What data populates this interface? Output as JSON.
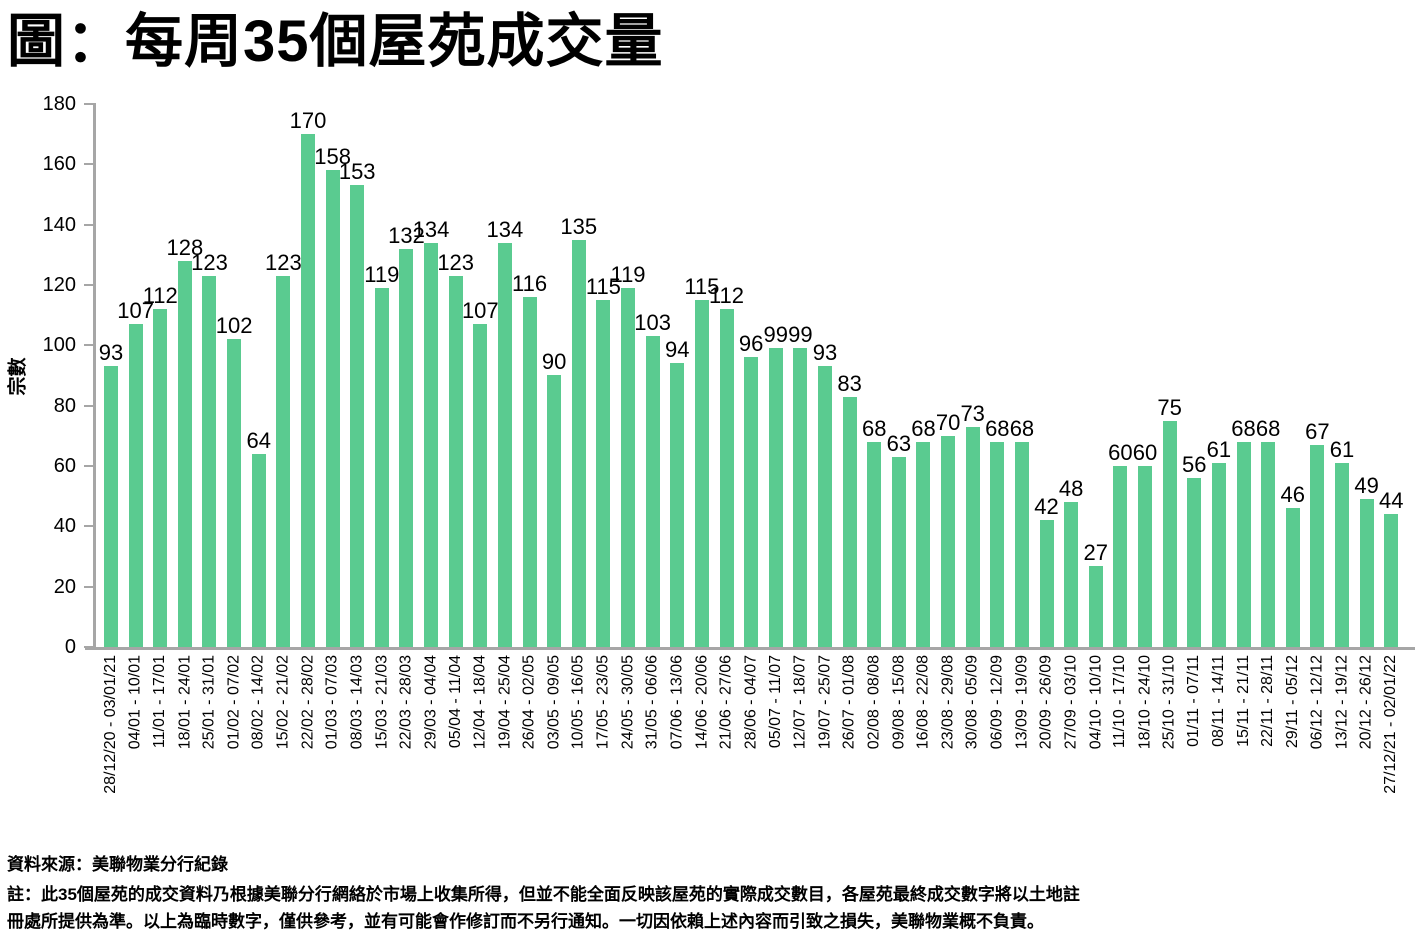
{
  "chart_data": {
    "type": "bar",
    "title": "圖：每周35個屋苑成交量",
    "xlabel": "",
    "ylabel": "宗數",
    "ylim": [
      0,
      180
    ],
    "ytick_step": 20,
    "grid": false,
    "legend": "none",
    "bar_color": "#5acb90",
    "axis_color": "#a6a6a6",
    "categories": [
      "28/12/20 - 03/01/21",
      "04/01 - 10/01",
      "11/01 - 17/01",
      "18/01 - 24/01",
      "25/01 - 31/01",
      "01/02 - 07/02",
      "08/02 - 14/02",
      "15/02 - 21/02",
      "22/02 - 28/02",
      "01/03 - 07/03",
      "08/03 - 14/03",
      "15/03 - 21/03",
      "22/03 - 28/03",
      "29/03 - 04/04",
      "05/04 - 11/04",
      "12/04 - 18/04",
      "19/04 - 25/04",
      "26/04 - 02/05",
      "03/05 - 09/05",
      "10/05 - 16/05",
      "17/05 - 23/05",
      "24/05 - 30/05",
      "31/05 - 06/06",
      "07/06 - 13/06",
      "14/06 - 20/06",
      "21/06 - 27/06",
      "28/06 - 04/07",
      "05/07 - 11/07",
      "12/07 - 18/07",
      "19/07 - 25/07",
      "26/07 - 01/08",
      "02/08 - 08/08",
      "09/08 - 15/08",
      "16/08 - 22/08",
      "23/08 - 29/08",
      "30/08 - 05/09",
      "06/09 - 12/09",
      "13/09 - 19/09",
      "20/09 - 26/09",
      "27/09 - 03/10",
      "04/10 - 10/10",
      "11/10 - 17/10",
      "18/10 - 24/10",
      "25/10 - 31/10",
      "01/11 - 07/11",
      "08/11 - 14/11",
      "15/11 - 21/11",
      "22/11 - 28/11",
      "29/11 - 05/12",
      "06/12 - 12/12",
      "13/12 - 19/12",
      "20/12 - 26/12",
      "27/12/21 - 02/01/22"
    ],
    "values": [
      93,
      107,
      112,
      128,
      123,
      102,
      64,
      123,
      170,
      158,
      153,
      119,
      132,
      134,
      123,
      107,
      134,
      116,
      90,
      135,
      115,
      119,
      103,
      94,
      115,
      112,
      96,
      99,
      99,
      93,
      83,
      68,
      63,
      68,
      70,
      73,
      68,
      68,
      42,
      48,
      27,
      60,
      60,
      75,
      56,
      61,
      68,
      68,
      46,
      67,
      61,
      49,
      44
    ]
  },
  "footer": {
    "source": "資料來源：美聯物業分行紀錄",
    "note_lines": [
      "註：此35個屋苑的成交資料乃根據美聯分行網絡於市場上收集所得，但並不能全面反映該屋苑的實際成交數目，各屋苑最終成交數字將以土地註",
      "冊處所提供為準。以上為臨時數字，僅供參考，並有可能會作修訂而不另行通知。一切因依賴上述內容而引致之損失，美聯物業概不負責。"
    ]
  }
}
